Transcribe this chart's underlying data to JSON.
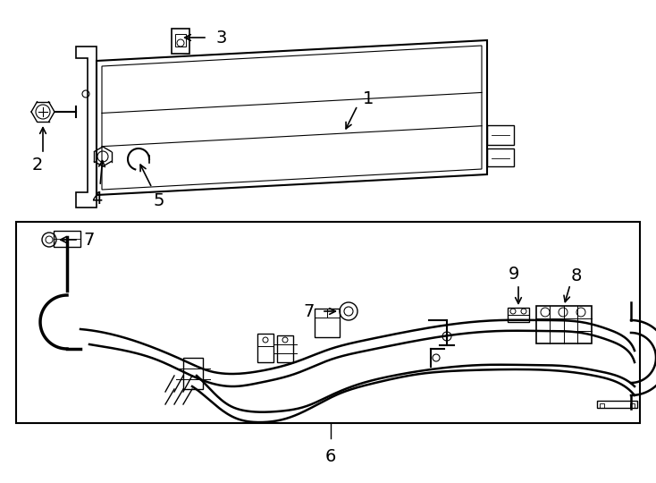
{
  "bg_color": "#ffffff",
  "line_color": "#000000",
  "fig_width": 7.34,
  "fig_height": 5.4,
  "dpi": 100
}
